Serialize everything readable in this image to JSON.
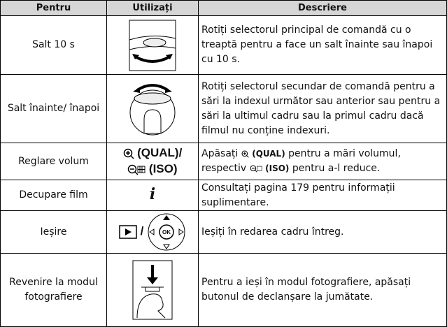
{
  "table": {
    "header": [
      "Pentru",
      "Utilizați",
      "Descriere"
    ],
    "rows": [
      {
        "action": "Salt 10 s",
        "description": "Rotiți selectorul principal de comandă cu o treaptă pentru a face un salt înainte sau înapoi cu 10 s."
      },
      {
        "action": "Salt înainte/ înapoi",
        "description": "Rotiți selectorul secundar de comandă pentru a sări la indexul următor sau anterior sau pentru a sări la ultimul cadru sau la primul cadru dacă filmul nu conține indexuri."
      },
      {
        "action": "Reglare volum",
        "usage": [
          "(QUAL)/",
          "(ISO)"
        ],
        "description": [
          "Apăsați",
          "(QUAL)",
          "pentru a mări volumul, respectiv",
          "(ISO)",
          "pentru a-l reduce."
        ]
      },
      {
        "action": "Decupare film",
        "usage": "i",
        "description": "Consultați pagina 179 pentru informații suplimentare."
      },
      {
        "action": "Ieșire",
        "usage": "/",
        "description": "Ieșiți în redarea cadru întreg."
      },
      {
        "action": "Revenire la modul fotografiere",
        "description": "Pentru a ieși în modul fotografiere, apăsați butonul de declanșare la jumătate."
      }
    ]
  }
}
